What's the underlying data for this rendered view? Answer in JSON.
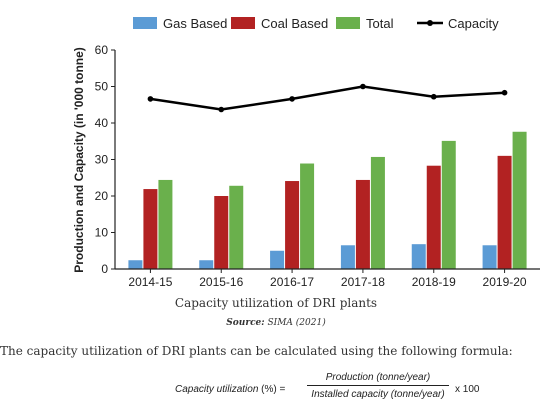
{
  "chart_data": {
    "type": "bar",
    "title": "",
    "xlabel": "",
    "ylabel": "Production and Capacity (in '000 tonne)",
    "ylim": [
      0,
      60
    ],
    "yticks": [
      0,
      10,
      20,
      30,
      40,
      50,
      60
    ],
    "grid": false,
    "legend_position": "top",
    "categories": [
      "2014-15",
      "2015-16",
      "2016-17",
      "2017-18",
      "2018-19",
      "2019-20"
    ],
    "series": [
      {
        "name": "Gas Based",
        "type": "bar",
        "color": "#5b9bd5",
        "values": [
          2.4,
          2.4,
          5.0,
          6.5,
          6.8,
          6.5
        ]
      },
      {
        "name": "Coal Based",
        "type": "bar",
        "color": "#b22222",
        "values": [
          21.9,
          20.0,
          24.1,
          24.4,
          28.3,
          31.0
        ]
      },
      {
        "name": "Total",
        "type": "bar",
        "color": "#6ab04c",
        "values": [
          24.4,
          22.8,
          28.9,
          30.7,
          35.1,
          37.6
        ]
      },
      {
        "name": "Capacity",
        "type": "line",
        "color": "#000000",
        "values": [
          46.6,
          43.7,
          46.6,
          50.0,
          47.2,
          48.3
        ]
      }
    ]
  },
  "caption": "Capacity utilization of DRI plants",
  "source_label": "Source:",
  "source_value": "SIMA (2021)",
  "body_text": "The capacity utilization of DRI plants can be calculated using the following formula:",
  "formula": {
    "lhs": "Capacity utilization",
    "lhs_unit": "(%) =",
    "numerator": "Production (tonne/year)",
    "denominator": "Installed capacity (tonne/year)",
    "multiplier": "x 100"
  }
}
